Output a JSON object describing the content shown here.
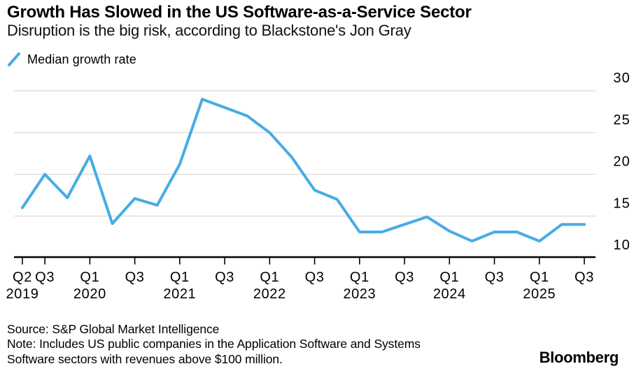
{
  "colors": {
    "line": "#47ace4",
    "grid": "#d8d8d8",
    "axis": "#000000",
    "text": "#000000",
    "background": "#ffffff"
  },
  "chart_data": {
    "type": "line",
    "title": "Growth Has Slowed in the US Software-as-a-Service Sector",
    "subtitle": "Disruption is the big risk, according to Blackstone's Jon Gray",
    "legend": "Median growth rate",
    "legend_position": "top-left",
    "grid": true,
    "y_axis_side": "right",
    "xlabel": "",
    "ylabel": "",
    "ylim": [
      10,
      30
    ],
    "y_ticks": [
      10,
      15,
      20,
      25,
      30
    ],
    "categories": [
      "Q2 2019",
      "Q3 2019",
      "Q4 2019",
      "Q1 2020",
      "Q2 2020",
      "Q3 2020",
      "Q4 2020",
      "Q1 2021",
      "Q2 2021",
      "Q3 2021",
      "Q4 2021",
      "Q1 2022",
      "Q2 2022",
      "Q3 2022",
      "Q4 2022",
      "Q1 2023",
      "Q2 2023",
      "Q3 2023",
      "Q4 2023",
      "Q1 2024",
      "Q2 2024",
      "Q3 2024",
      "Q4 2024",
      "Q1 2025",
      "Q2 2025",
      "Q3 2025"
    ],
    "values": [
      16,
      20,
      17.2,
      22.2,
      14.1,
      17.1,
      16.3,
      21.2,
      29,
      28,
      27,
      25,
      22,
      18.1,
      17,
      13.1,
      13.1,
      14,
      14.9,
      13.2,
      12,
      13.1,
      13.1,
      12,
      14,
      14
    ],
    "x_ticks": [
      {
        "index": 0,
        "label": "Q2"
      },
      {
        "index": 1,
        "label": "Q3"
      },
      {
        "index": 3,
        "label": "Q1"
      },
      {
        "index": 5,
        "label": "Q3"
      },
      {
        "index": 7,
        "label": "Q1"
      },
      {
        "index": 9,
        "label": "Q3"
      },
      {
        "index": 11,
        "label": "Q1"
      },
      {
        "index": 13,
        "label": "Q3"
      },
      {
        "index": 15,
        "label": "Q1"
      },
      {
        "index": 17,
        "label": "Q3"
      },
      {
        "index": 19,
        "label": "Q1"
      },
      {
        "index": 21,
        "label": "Q3"
      },
      {
        "index": 23,
        "label": "Q1"
      },
      {
        "index": 25,
        "label": "Q3"
      }
    ],
    "year_labels": [
      {
        "index": 0,
        "label": "2019"
      },
      {
        "index": 3,
        "label": "2020"
      },
      {
        "index": 7,
        "label": "2021"
      },
      {
        "index": 11,
        "label": "2022"
      },
      {
        "index": 15,
        "label": "2023"
      },
      {
        "index": 19,
        "label": "2024"
      },
      {
        "index": 23,
        "label": "2025"
      }
    ]
  },
  "footer": {
    "lines": [
      "Source: S&P Global Market Intelligence",
      "Note: Includes US public companies in the Application Software and Systems",
      "Software sectors with revenues above $100 million."
    ],
    "brand": "Bloomberg"
  }
}
